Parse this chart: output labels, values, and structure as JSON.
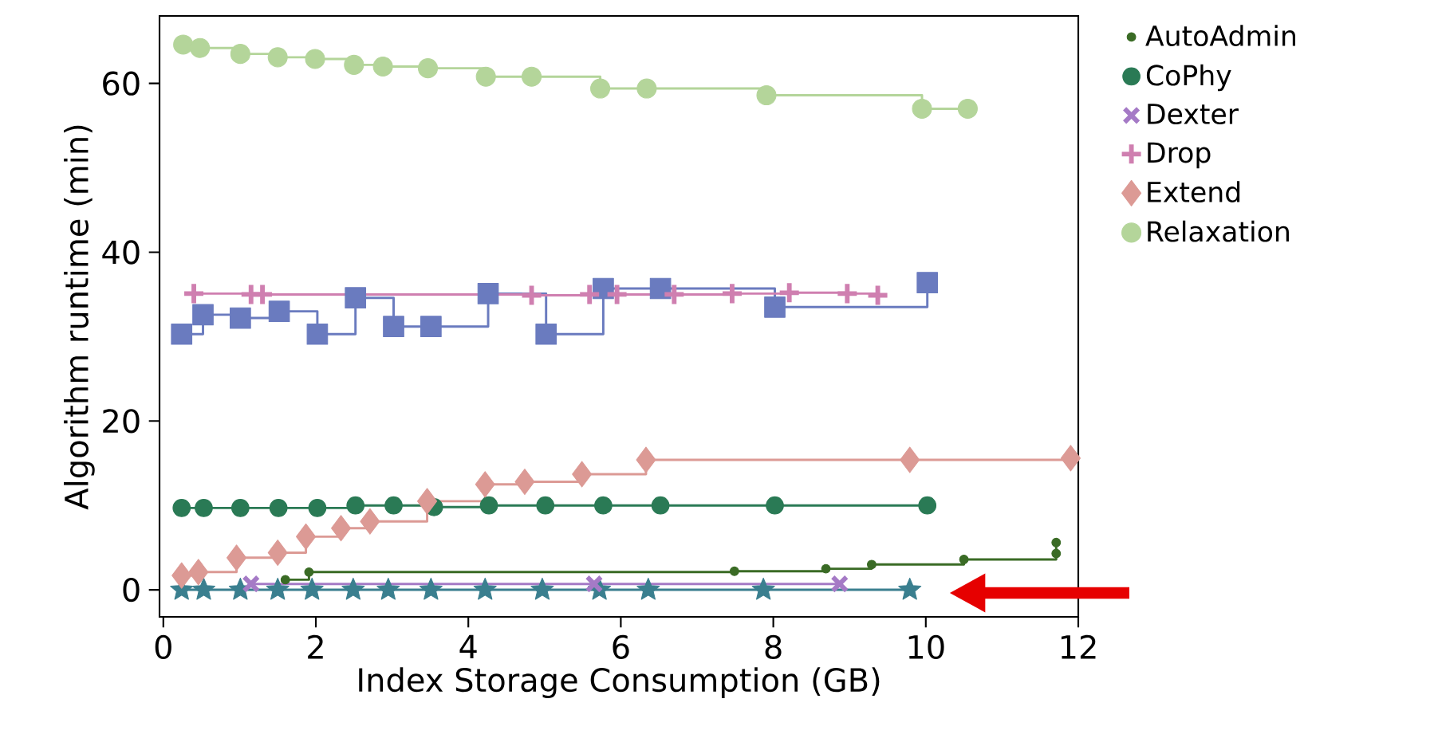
{
  "chart_data": {
    "type": "step",
    "xlabel": "Index Storage Consumption (GB)",
    "ylabel": "Algorithm runtime (min)",
    "xlim": [
      -0.05,
      12
    ],
    "ylim": [
      -3.2,
      68
    ],
    "xticks": [
      0,
      2,
      4,
      6,
      8,
      10,
      12
    ],
    "yticks": [
      0,
      20,
      40,
      60
    ],
    "legend": "right",
    "series": [
      {
        "name": "AutoAdmin",
        "color": "#3a6b25",
        "marker": "circle",
        "x": [
          1.6,
          1.91,
          7.49,
          8.69,
          9.29,
          10.5,
          11.71,
          11.71
        ],
        "values": [
          1.2,
          2.1,
          2.2,
          2.5,
          3.0,
          3.6,
          5.6,
          4.3
        ]
      },
      {
        "name": "CoPhy",
        "color": "#2a7a55",
        "marker": "circle",
        "x": [
          0.24,
          0.53,
          1.01,
          1.51,
          2.02,
          2.52,
          3.02,
          3.55,
          4.27,
          5.01,
          5.77,
          6.52,
          8.02,
          10.02
        ],
        "values": [
          9.7,
          9.7,
          9.7,
          9.7,
          9.7,
          10.0,
          10.0,
          9.8,
          10.0,
          10.0,
          10.0,
          10.0,
          10.0,
          10.0
        ]
      },
      {
        "color": "#3a7f8f",
        "marker": "star",
        "x": [
          0.24,
          0.53,
          1.01,
          1.5,
          1.95,
          2.49,
          2.95,
          3.51,
          4.22,
          4.97,
          5.72,
          6.36,
          7.87,
          9.79
        ],
        "values": [
          0.0,
          0.0,
          0.0,
          0.0,
          0.0,
          0.0,
          0.0,
          0.0,
          0.0,
          0.0,
          0.0,
          0.0,
          0.0,
          0.0
        ]
      },
      {
        "color": "#6a7bbf",
        "marker": "square",
        "x": [
          0.24,
          0.52,
          1.01,
          1.52,
          2.02,
          2.52,
          3.02,
          3.51,
          4.26,
          5.02,
          5.77,
          6.52,
          8.02,
          10.02
        ],
        "values": [
          30.3,
          32.6,
          32.2,
          33.0,
          30.3,
          34.6,
          31.2,
          31.2,
          35.1,
          30.3,
          35.7,
          35.7,
          33.5,
          36.4
        ]
      },
      {
        "name": "Dexter",
        "color": "#a57ac6",
        "marker": "cross",
        "x": [
          1.15,
          5.65,
          8.87
        ],
        "values": [
          0.7,
          0.7,
          0.7
        ]
      },
      {
        "name": "Drop",
        "color": "#cf7fb0",
        "marker": "plus",
        "x": [
          0.4,
          1.15,
          1.3,
          4.83,
          5.59,
          5.95,
          6.7,
          7.46,
          8.21,
          8.97,
          9.37
        ],
        "values": [
          35.1,
          35.0,
          35.0,
          34.9,
          35.0,
          35.0,
          35.0,
          35.1,
          35.2,
          35.1,
          34.9
        ]
      },
      {
        "name": "Extend",
        "color": "#dc9a95",
        "marker": "diamond",
        "x": [
          0.24,
          0.46,
          0.96,
          1.5,
          1.87,
          2.33,
          2.71,
          3.46,
          4.22,
          4.74,
          5.49,
          6.33,
          9.79,
          11.9
        ],
        "values": [
          1.7,
          2.1,
          3.8,
          4.4,
          6.3,
          7.3,
          8.1,
          10.5,
          12.5,
          12.8,
          13.7,
          15.4,
          15.4,
          15.6
        ]
      },
      {
        "name": "Relaxation",
        "color": "#b4d59a",
        "marker": "circle",
        "x": [
          0.26,
          0.48,
          1.01,
          1.5,
          1.99,
          2.5,
          2.88,
          3.47,
          4.23,
          4.83,
          5.73,
          6.34,
          7.91,
          9.95,
          10.55
        ],
        "values": [
          64.6,
          64.2,
          63.5,
          63.1,
          62.9,
          62.2,
          62.0,
          61.8,
          60.8,
          60.8,
          59.4,
          59.4,
          58.6,
          57.0,
          57.0
        ]
      }
    ]
  }
}
